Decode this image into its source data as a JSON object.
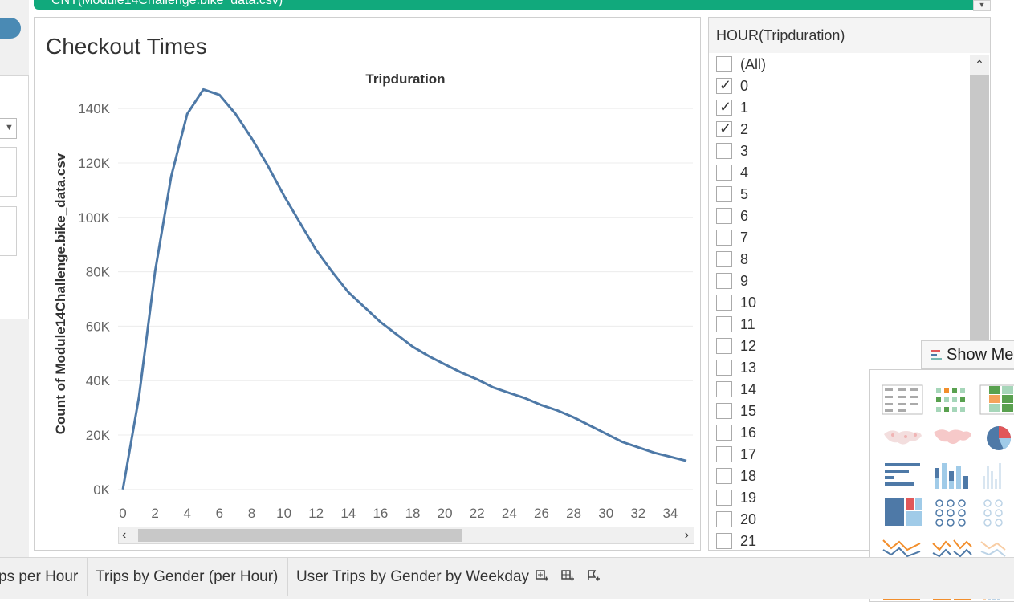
{
  "datasource_bar": {
    "text": "CNT(Module14Challenge.bike_data.csv)"
  },
  "chart_panel": {
    "title": "Checkout Times"
  },
  "chart_data": {
    "type": "line",
    "title": "Tripduration",
    "xlabel": "",
    "ylabel": "Count of Module14Challenge.bike_data.csv",
    "x_ticks": [
      "0",
      "2",
      "4",
      "6",
      "8",
      "10",
      "12",
      "14",
      "16",
      "18",
      "20",
      "22",
      "24",
      "26",
      "28",
      "30",
      "32",
      "34"
    ],
    "y_ticks": [
      "0K",
      "20K",
      "40K",
      "60K",
      "80K",
      "100K",
      "120K",
      "140K"
    ],
    "xlim": [
      -0.3,
      35.4
    ],
    "ylim": [
      -3000,
      148000
    ],
    "grid": true,
    "series": [
      {
        "color": "#4e79a7",
        "x": [
          0,
          1,
          2,
          3,
          4,
          5,
          6,
          7,
          8,
          9,
          10,
          11,
          12,
          13,
          14,
          15,
          16,
          17,
          18,
          19,
          20,
          21,
          22,
          23,
          24,
          25,
          26,
          27,
          28,
          29,
          30,
          31,
          32,
          33,
          34,
          35
        ],
        "values": [
          0,
          34000,
          80000,
          115000,
          138000,
          147000,
          145000,
          138000,
          129000,
          119000,
          108000,
          98000,
          88000,
          80000,
          72500,
          67000,
          61500,
          57000,
          52500,
          49000,
          46000,
          43000,
          40500,
          37500,
          35500,
          33500,
          31000,
          29000,
          26500,
          23500,
          20500,
          17500,
          15500,
          13500,
          12000,
          10500
        ]
      }
    ]
  },
  "filter": {
    "title": "HOUR(Tripduration)",
    "items": [
      {
        "label": "(All)",
        "checked": false
      },
      {
        "label": "0",
        "checked": true
      },
      {
        "label": "1",
        "checked": true
      },
      {
        "label": "2",
        "checked": true
      },
      {
        "label": "3",
        "checked": false
      },
      {
        "label": "4",
        "checked": false
      },
      {
        "label": "5",
        "checked": false
      },
      {
        "label": "6",
        "checked": false
      },
      {
        "label": "7",
        "checked": false
      },
      {
        "label": "8",
        "checked": false
      },
      {
        "label": "9",
        "checked": false
      },
      {
        "label": "10",
        "checked": false
      },
      {
        "label": "11",
        "checked": false
      },
      {
        "label": "12",
        "checked": false
      },
      {
        "label": "13",
        "checked": false
      },
      {
        "label": "14",
        "checked": false
      },
      {
        "label": "15",
        "checked": false
      },
      {
        "label": "16",
        "checked": false
      },
      {
        "label": "17",
        "checked": false
      },
      {
        "label": "18",
        "checked": false
      },
      {
        "label": "19",
        "checked": false
      },
      {
        "label": "20",
        "checked": false
      },
      {
        "label": "21",
        "checked": false
      }
    ],
    "check_glyph": "✓"
  },
  "show_me": {
    "label": "Show Me",
    "icon": "show-me-icon"
  },
  "scrollbar": {
    "left_glyph": "‹",
    "right_glyph": "›",
    "up_glyph": "⌃"
  },
  "tabs": [
    {
      "label": "ps per Hour"
    },
    {
      "label": "Trips by Gender (per Hour)"
    },
    {
      "label": "User Trips by Gender by Weekday"
    }
  ],
  "tab_icons": [
    "new-worksheet-icon",
    "new-dashboard-icon",
    "new-story-icon"
  ],
  "colors": {
    "accent": "#11a97c",
    "series": "#4e79a7",
    "grid": "#ececec"
  }
}
